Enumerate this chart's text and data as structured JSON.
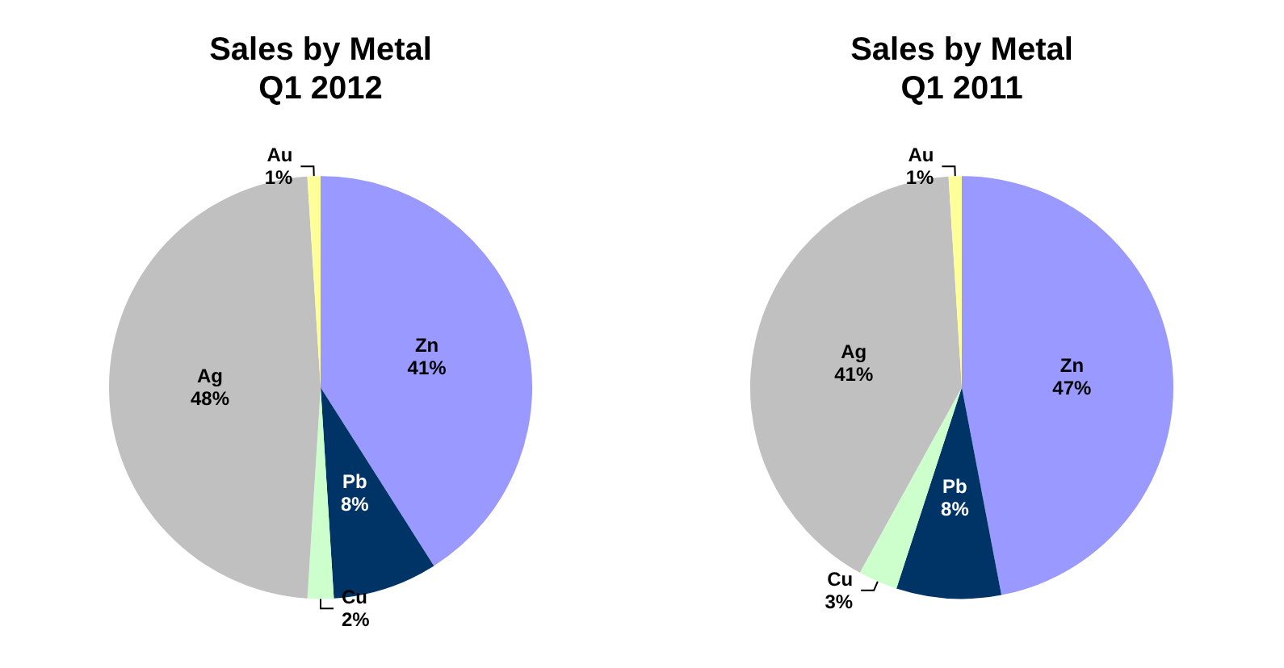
{
  "chart_data": [
    {
      "type": "pie",
      "title": "Sales by Metal\nQ1 2012",
      "categories": [
        "Zn",
        "Pb",
        "Cu",
        "Ag",
        "Au"
      ],
      "values": [
        41,
        8,
        2,
        48,
        1
      ],
      "value_labels": [
        "41%",
        "8%",
        "2%",
        "48%",
        "1%"
      ],
      "colors": [
        "#9999ff",
        "#003366",
        "#ccffcc",
        "#c0c0c0",
        "#ffff99"
      ],
      "legend": false
    },
    {
      "type": "pie",
      "title": "Sales by Metal\nQ1 2011",
      "categories": [
        "Zn",
        "Pb",
        "Cu",
        "Ag",
        "Au"
      ],
      "values": [
        47,
        8,
        3,
        41,
        1
      ],
      "value_labels": [
        "47%",
        "8%",
        "3%",
        "41%",
        "1%"
      ],
      "colors": [
        "#9999ff",
        "#003366",
        "#ccffcc",
        "#c0c0c0",
        "#ffff99"
      ],
      "legend": false
    }
  ]
}
